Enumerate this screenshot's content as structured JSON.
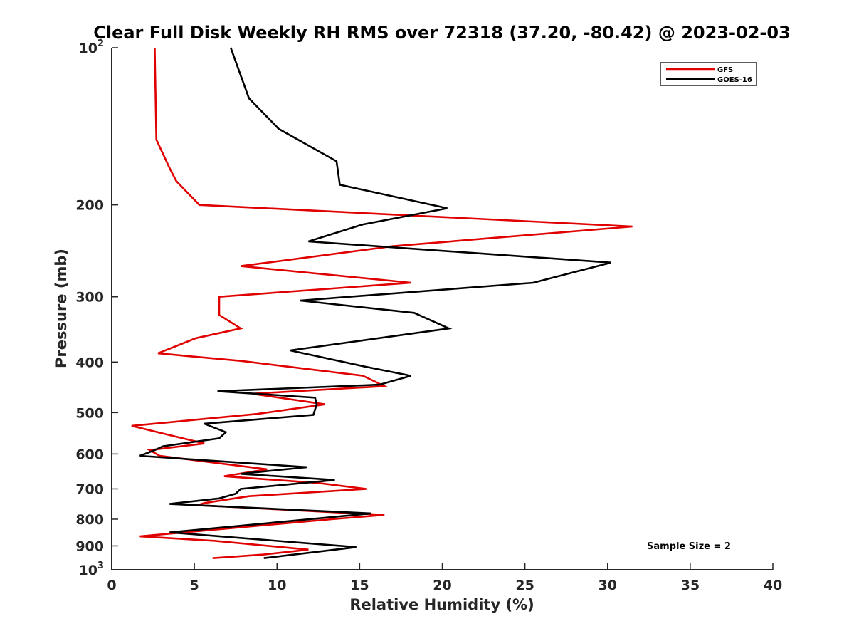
{
  "chart_data": {
    "type": "line",
    "title": "Clear Full Disk Weekly RH RMS over 72318 (37.20, -80.42) @ 2023-02-03",
    "xlabel": "Relative Humidity (%)",
    "ylabel": "Pressure (mb)",
    "xlim": [
      0,
      40
    ],
    "ylim": [
      100,
      1000
    ],
    "y_scale": "log",
    "y_reversed": true,
    "grid": false,
    "legend_placement": "top-right",
    "x_ticks": [
      "0",
      "5",
      "10",
      "15",
      "20",
      "25",
      "30",
      "35",
      "40"
    ],
    "y_ticks": [
      {
        "value": 100,
        "base": "10",
        "exp": "2"
      },
      {
        "value": 200,
        "label": "200"
      },
      {
        "value": 300,
        "label": "300"
      },
      {
        "value": 400,
        "label": "400"
      },
      {
        "value": 500,
        "label": "500"
      },
      {
        "value": 600,
        "label": "600"
      },
      {
        "value": 700,
        "label": "700"
      },
      {
        "value": 800,
        "label": "800"
      },
      {
        "value": 900,
        "label": "900"
      },
      {
        "value": 1000,
        "base": "10",
        "exp": "3"
      }
    ],
    "annotation": "Sample Size = 2",
    "series": [
      {
        "name": "GFS",
        "color": "#e00000",
        "points": [
          [
            2.6,
            100
          ],
          [
            2.7,
            150
          ],
          [
            3.5,
            170
          ],
          [
            3.9,
            180
          ],
          [
            5.3,
            200
          ],
          [
            31.5,
            220
          ],
          [
            17.0,
            240
          ],
          [
            7.8,
            262
          ],
          [
            18.1,
            282
          ],
          [
            6.5,
            300
          ],
          [
            6.5,
            325
          ],
          [
            7.8,
            345
          ],
          [
            5.1,
            360
          ],
          [
            2.8,
            385
          ],
          [
            7.8,
            398
          ],
          [
            15.2,
            425
          ],
          [
            16.5,
            445
          ],
          [
            8.5,
            460
          ],
          [
            12.9,
            482
          ],
          [
            8.8,
            503
          ],
          [
            1.2,
            530
          ],
          [
            3.8,
            555
          ],
          [
            5.6,
            573
          ],
          [
            2.3,
            590
          ],
          [
            2.9,
            605
          ],
          [
            9.4,
            642
          ],
          [
            6.8,
            662
          ],
          [
            12.5,
            682
          ],
          [
            15.4,
            700
          ],
          [
            8.3,
            723
          ],
          [
            5.6,
            745
          ],
          [
            5.2,
            752
          ],
          [
            16.5,
            785
          ],
          [
            13.3,
            800
          ],
          [
            1.7,
            863
          ],
          [
            6.2,
            880
          ],
          [
            11.9,
            915
          ],
          [
            9.2,
            935
          ],
          [
            6.1,
            950
          ]
        ]
      },
      {
        "name": "GOES-16",
        "color": "#000000",
        "points": [
          [
            7.2,
            100
          ],
          [
            8.3,
            125
          ],
          [
            10.1,
            143
          ],
          [
            13.6,
            165
          ],
          [
            13.8,
            183
          ],
          [
            20.3,
            203
          ],
          [
            15.2,
            218
          ],
          [
            11.9,
            235
          ],
          [
            30.2,
            258
          ],
          [
            25.5,
            282
          ],
          [
            11.4,
            305
          ],
          [
            18.3,
            322
          ],
          [
            20.4,
            345
          ],
          [
            10.8,
            380
          ],
          [
            15.3,
            408
          ],
          [
            18.1,
            425
          ],
          [
            16.2,
            442
          ],
          [
            6.4,
            455
          ],
          [
            12.3,
            468
          ],
          [
            12.4,
            482
          ],
          [
            12.2,
            505
          ],
          [
            5.6,
            525
          ],
          [
            6.9,
            545
          ],
          [
            6.5,
            560
          ],
          [
            3.1,
            580
          ],
          [
            2.6,
            590
          ],
          [
            1.7,
            605
          ],
          [
            11.8,
            636
          ],
          [
            7.8,
            655
          ],
          [
            13.5,
            673
          ],
          [
            7.8,
            700
          ],
          [
            7.5,
            715
          ],
          [
            6.5,
            730
          ],
          [
            3.5,
            748
          ],
          [
            15.7,
            780
          ],
          [
            3.5,
            848
          ],
          [
            14.8,
            905
          ],
          [
            9.2,
            950
          ]
        ]
      }
    ]
  }
}
